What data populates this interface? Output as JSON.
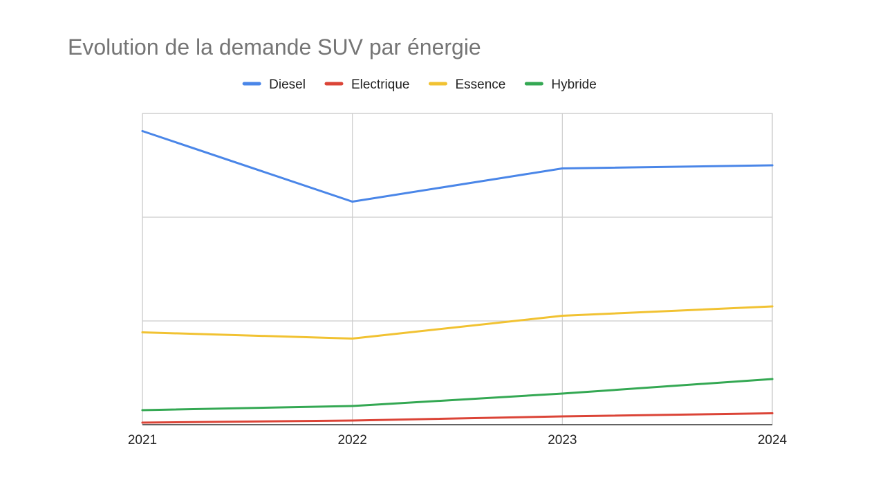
{
  "chart_data": {
    "type": "line",
    "title": "Evolution de la demande SUV par énergie",
    "xlabel": "",
    "ylabel": "",
    "x": [
      "2021",
      "2022",
      "2023",
      "2024"
    ],
    "ylim": [
      0,
      3
    ],
    "y_gridlines": [
      1,
      2,
      3
    ],
    "y_tick_labels_visible": false,
    "grid": true,
    "legend_position": "top",
    "series": [
      {
        "name": "Diesel",
        "color": "#4a86e8",
        "values": [
          2.83,
          2.15,
          2.47,
          2.5
        ]
      },
      {
        "name": "Electrique",
        "color": "#db4437",
        "values": [
          0.02,
          0.04,
          0.08,
          0.11
        ]
      },
      {
        "name": "Essence",
        "color": "#f1c232",
        "values": [
          0.89,
          0.83,
          1.05,
          1.14
        ]
      },
      {
        "name": "Hybride",
        "color": "#34a853",
        "values": [
          0.14,
          0.18,
          0.3,
          0.44
        ]
      }
    ]
  }
}
